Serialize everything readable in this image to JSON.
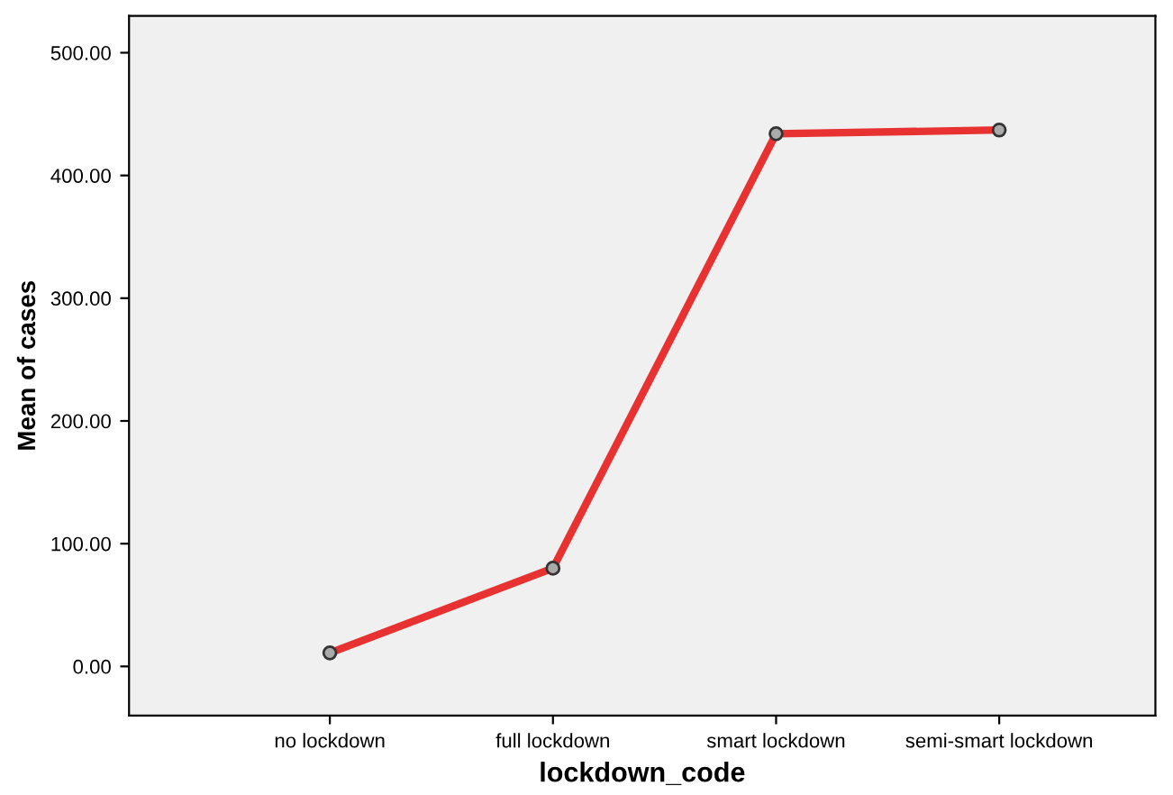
{
  "chart_data": {
    "type": "line",
    "xlabel": "lockdown_code",
    "ylabel": "Mean of cases",
    "categories": [
      "no lockdown",
      "full lockdown",
      "smart lockdown",
      "semi-smart lockdown"
    ],
    "series": [
      {
        "color": "#e83232",
        "values": [
          11,
          80,
          434,
          437
        ]
      }
    ],
    "ylim": [
      -40,
      530
    ],
    "yticks": [
      {
        "value": 0,
        "label": "0.00"
      },
      {
        "value": 100,
        "label": "100.00"
      },
      {
        "value": 200,
        "label": "200.00"
      },
      {
        "value": 300,
        "label": "300.00"
      },
      {
        "value": 400,
        "label": "400.00"
      },
      {
        "value": 500,
        "label": "500.00"
      }
    ],
    "marker": "circle",
    "line_style": "solid",
    "grid": false,
    "legend": false
  }
}
